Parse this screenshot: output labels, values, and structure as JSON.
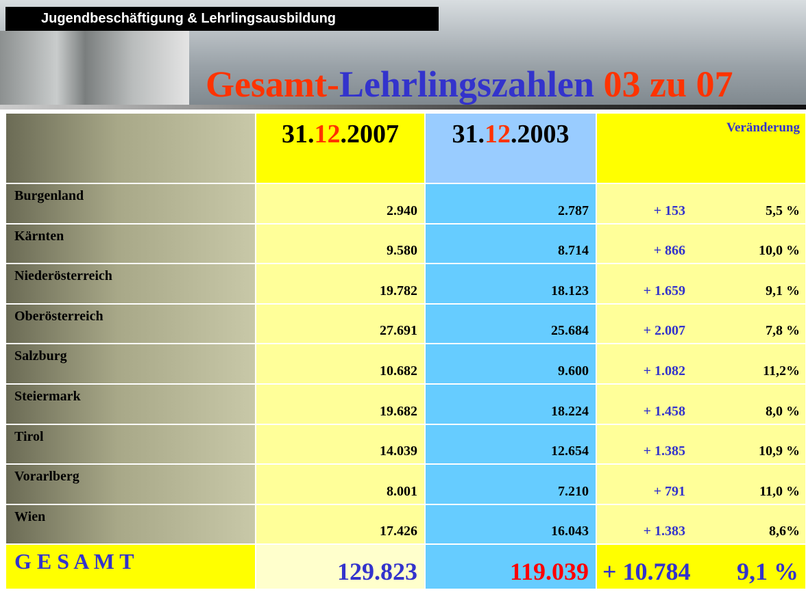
{
  "banner": "Jugendbeschäftigung & Lehrlingsausbildung",
  "title": {
    "part1": "Gesamt-",
    "part2": "Lehrlingszahlen",
    "part3": "03 zu 07"
  },
  "table": {
    "headers": [
      [
        "31.",
        "12",
        ".2007"
      ],
      [
        "31.",
        "12",
        ".2003"
      ]
    ],
    "change_header": "Veränderung",
    "rows": [
      [
        "Burgenland",
        "2.940",
        "2.787",
        "+ 153",
        "5,5 %"
      ],
      [
        "Kärnten",
        "9.580",
        "8.714",
        "+ 866",
        "10,0 %"
      ],
      [
        "Niederösterreich",
        "19.782",
        "18.123",
        "+ 1.659",
        "9,1 %"
      ],
      [
        "Oberösterreich",
        "27.691",
        "25.684",
        "+ 2.007",
        "7,8 %"
      ],
      [
        "Salzburg",
        "10.682",
        "9.600",
        "+ 1.082",
        "11,2%"
      ],
      [
        "Steiermark",
        "19.682",
        "18.224",
        "+ 1.458",
        "8,0 %"
      ],
      [
        "Tirol",
        "14.039",
        "12.654",
        "+ 1.385",
        "10,9 %"
      ],
      [
        "Vorarlberg",
        "8.001",
        "7.210",
        "+ 791",
        "11,0 %"
      ],
      [
        "Wien",
        "17.426",
        "16.043",
        "+ 1.383",
        "8,6%"
      ]
    ],
    "total": [
      "G E S A M T",
      "129.823",
      "119.039",
      "+ 10.784",
      "9,1 %"
    ]
  }
}
